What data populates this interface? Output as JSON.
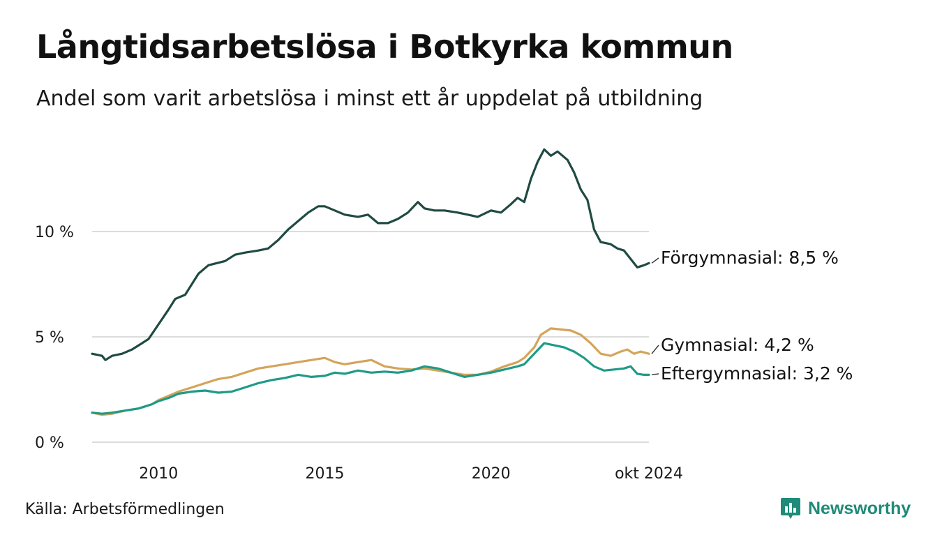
{
  "header": {
    "title": "Långtidsarbetslösa i Botkyrka kommun",
    "subtitle": "Andel som varit arbetslösa i minst ett år uppdelat på utbildning"
  },
  "footer": {
    "source": "Källa: Arbetsförmedlingen",
    "brand": "Newsworthy",
    "brand_icon": "bar-chart-speech-icon",
    "brand_color": "#1f8b78"
  },
  "chart_data": {
    "type": "line",
    "title": "Långtidsarbetslösa i Botkyrka kommun",
    "xlabel": "",
    "ylabel": "",
    "x_range": [
      2008.0,
      2024.75
    ],
    "ylim": [
      0,
      14
    ],
    "y_ticks": [
      {
        "value": 0,
        "label": "0 %"
      },
      {
        "value": 5,
        "label": "5 %"
      },
      {
        "value": 10,
        "label": "10 %"
      }
    ],
    "x_ticks": [
      {
        "value": 2010,
        "label": "2010"
      },
      {
        "value": 2015,
        "label": "2015"
      },
      {
        "value": 2020,
        "label": "2020"
      },
      {
        "value": 2024.75,
        "label": "okt 2024"
      }
    ],
    "grid": true,
    "series": [
      {
        "name": "Förgymnasial",
        "end_label": "Förgymnasial: 8,5 %",
        "color": "#1f4a42",
        "points": [
          [
            2008.0,
            4.2
          ],
          [
            2008.3,
            4.1
          ],
          [
            2008.4,
            3.9
          ],
          [
            2008.6,
            4.1
          ],
          [
            2008.9,
            4.2
          ],
          [
            2009.2,
            4.4
          ],
          [
            2009.5,
            4.7
          ],
          [
            2009.7,
            4.9
          ],
          [
            2010.0,
            5.6
          ],
          [
            2010.3,
            6.3
          ],
          [
            2010.5,
            6.8
          ],
          [
            2010.8,
            7.0
          ],
          [
            2011.0,
            7.5
          ],
          [
            2011.2,
            8.0
          ],
          [
            2011.5,
            8.4
          ],
          [
            2012.0,
            8.6
          ],
          [
            2012.3,
            8.9
          ],
          [
            2012.6,
            9.0
          ],
          [
            2013.0,
            9.1
          ],
          [
            2013.3,
            9.2
          ],
          [
            2013.6,
            9.6
          ],
          [
            2013.9,
            10.1
          ],
          [
            2014.2,
            10.5
          ],
          [
            2014.5,
            10.9
          ],
          [
            2014.8,
            11.2
          ],
          [
            2015.0,
            11.2
          ],
          [
            2015.3,
            11.0
          ],
          [
            2015.6,
            10.8
          ],
          [
            2016.0,
            10.7
          ],
          [
            2016.3,
            10.8
          ],
          [
            2016.6,
            10.4
          ],
          [
            2016.9,
            10.4
          ],
          [
            2017.2,
            10.6
          ],
          [
            2017.5,
            10.9
          ],
          [
            2017.8,
            11.4
          ],
          [
            2018.0,
            11.1
          ],
          [
            2018.3,
            11.0
          ],
          [
            2018.6,
            11.0
          ],
          [
            2019.0,
            10.9
          ],
          [
            2019.3,
            10.8
          ],
          [
            2019.6,
            10.7
          ],
          [
            2020.0,
            11.0
          ],
          [
            2020.3,
            10.9
          ],
          [
            2020.6,
            11.3
          ],
          [
            2020.8,
            11.6
          ],
          [
            2021.0,
            11.4
          ],
          [
            2021.2,
            12.5
          ],
          [
            2021.4,
            13.3
          ],
          [
            2021.6,
            13.9
          ],
          [
            2021.8,
            13.6
          ],
          [
            2022.0,
            13.8
          ],
          [
            2022.3,
            13.4
          ],
          [
            2022.5,
            12.8
          ],
          [
            2022.7,
            12.0
          ],
          [
            2022.9,
            11.5
          ],
          [
            2023.1,
            10.1
          ],
          [
            2023.3,
            9.5
          ],
          [
            2023.6,
            9.4
          ],
          [
            2023.8,
            9.2
          ],
          [
            2024.0,
            9.1
          ],
          [
            2024.2,
            8.7
          ],
          [
            2024.4,
            8.3
          ],
          [
            2024.6,
            8.4
          ],
          [
            2024.75,
            8.5
          ]
        ]
      },
      {
        "name": "Gymnasial",
        "end_label": "Gymnasial: 4,2 %",
        "color": "#d4a45a",
        "points": [
          [
            2008.0,
            1.4
          ],
          [
            2008.3,
            1.3
          ],
          [
            2008.6,
            1.35
          ],
          [
            2009.0,
            1.5
          ],
          [
            2009.4,
            1.6
          ],
          [
            2009.8,
            1.8
          ],
          [
            2010.0,
            2.0
          ],
          [
            2010.3,
            2.2
          ],
          [
            2010.6,
            2.4
          ],
          [
            2011.0,
            2.6
          ],
          [
            2011.4,
            2.8
          ],
          [
            2011.8,
            3.0
          ],
          [
            2012.2,
            3.1
          ],
          [
            2012.6,
            3.3
          ],
          [
            2013.0,
            3.5
          ],
          [
            2013.4,
            3.6
          ],
          [
            2013.8,
            3.7
          ],
          [
            2014.2,
            3.8
          ],
          [
            2014.6,
            3.9
          ],
          [
            2015.0,
            4.0
          ],
          [
            2015.3,
            3.8
          ],
          [
            2015.6,
            3.7
          ],
          [
            2016.0,
            3.8
          ],
          [
            2016.4,
            3.9
          ],
          [
            2016.8,
            3.6
          ],
          [
            2017.2,
            3.5
          ],
          [
            2017.6,
            3.45
          ],
          [
            2018.0,
            3.5
          ],
          [
            2018.4,
            3.4
          ],
          [
            2018.8,
            3.3
          ],
          [
            2019.2,
            3.2
          ],
          [
            2019.6,
            3.2
          ],
          [
            2020.0,
            3.35
          ],
          [
            2020.4,
            3.6
          ],
          [
            2020.8,
            3.8
          ],
          [
            2021.0,
            4.0
          ],
          [
            2021.3,
            4.5
          ],
          [
            2021.5,
            5.1
          ],
          [
            2021.8,
            5.4
          ],
          [
            2022.1,
            5.35
          ],
          [
            2022.4,
            5.3
          ],
          [
            2022.7,
            5.1
          ],
          [
            2023.0,
            4.7
          ],
          [
            2023.3,
            4.2
          ],
          [
            2023.6,
            4.1
          ],
          [
            2023.9,
            4.3
          ],
          [
            2024.1,
            4.4
          ],
          [
            2024.3,
            4.2
          ],
          [
            2024.5,
            4.3
          ],
          [
            2024.75,
            4.2
          ]
        ]
      },
      {
        "name": "Eftergymnasial",
        "end_label": "Eftergymnasial: 3,2 %",
        "color": "#1f9a88",
        "points": [
          [
            2008.0,
            1.4
          ],
          [
            2008.3,
            1.35
          ],
          [
            2008.6,
            1.4
          ],
          [
            2009.0,
            1.5
          ],
          [
            2009.4,
            1.6
          ],
          [
            2009.8,
            1.8
          ],
          [
            2010.0,
            1.95
          ],
          [
            2010.3,
            2.1
          ],
          [
            2010.6,
            2.3
          ],
          [
            2011.0,
            2.4
          ],
          [
            2011.4,
            2.45
          ],
          [
            2011.8,
            2.35
          ],
          [
            2012.2,
            2.4
          ],
          [
            2012.6,
            2.6
          ],
          [
            2013.0,
            2.8
          ],
          [
            2013.4,
            2.95
          ],
          [
            2013.8,
            3.05
          ],
          [
            2014.2,
            3.2
          ],
          [
            2014.6,
            3.1
          ],
          [
            2015.0,
            3.15
          ],
          [
            2015.3,
            3.3
          ],
          [
            2015.6,
            3.25
          ],
          [
            2016.0,
            3.4
          ],
          [
            2016.4,
            3.3
          ],
          [
            2016.8,
            3.35
          ],
          [
            2017.2,
            3.3
          ],
          [
            2017.6,
            3.4
          ],
          [
            2018.0,
            3.6
          ],
          [
            2018.4,
            3.5
          ],
          [
            2018.8,
            3.3
          ],
          [
            2019.2,
            3.1
          ],
          [
            2019.6,
            3.2
          ],
          [
            2020.0,
            3.3
          ],
          [
            2020.4,
            3.45
          ],
          [
            2020.8,
            3.6
          ],
          [
            2021.0,
            3.7
          ],
          [
            2021.3,
            4.2
          ],
          [
            2021.6,
            4.7
          ],
          [
            2021.9,
            4.6
          ],
          [
            2022.2,
            4.5
          ],
          [
            2022.5,
            4.3
          ],
          [
            2022.8,
            4.0
          ],
          [
            2023.1,
            3.6
          ],
          [
            2023.4,
            3.4
          ],
          [
            2023.7,
            3.45
          ],
          [
            2024.0,
            3.5
          ],
          [
            2024.2,
            3.6
          ],
          [
            2024.4,
            3.25
          ],
          [
            2024.6,
            3.2
          ],
          [
            2024.75,
            3.2
          ]
        ]
      }
    ]
  }
}
